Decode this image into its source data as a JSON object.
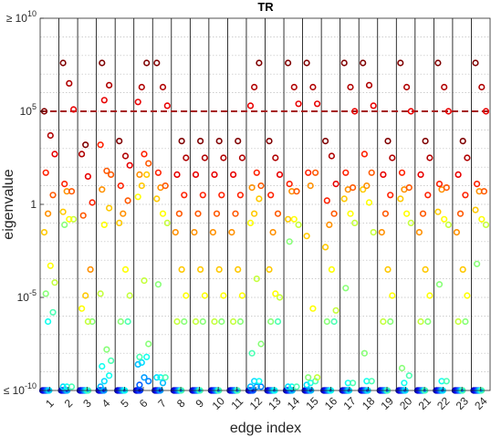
{
  "chart_data": {
    "type": "scatter",
    "title": "TR",
    "xlabel": "edge index",
    "ylabel": "eigenvalue",
    "x_categories": [
      "1",
      "2",
      "3",
      "4",
      "5",
      "6",
      "7",
      "8",
      "9",
      "10",
      "11",
      "12",
      "13",
      "14",
      "15",
      "16",
      "17",
      "18",
      "19",
      "20",
      "21",
      "22",
      "23",
      "24"
    ],
    "y_scale": "log",
    "ylim": [
      1e-10,
      10000000000.0
    ],
    "y_ticks": [
      {
        "exp": -10,
        "prefix": "≤ ",
        "base": "10",
        "sup": "-10"
      },
      {
        "exp": -5,
        "prefix": "",
        "base": "10",
        "sup": "-5"
      },
      {
        "exp": 0,
        "prefix": "",
        "base": "1",
        "sup": ""
      },
      {
        "exp": 5,
        "prefix": "",
        "base": "10",
        "sup": "5"
      },
      {
        "exp": 10,
        "prefix": "≥ ",
        "base": "10",
        "sup": "10"
      }
    ],
    "threshold": {
      "value": 100000,
      "color": "#a51b1b",
      "style": "dashed"
    },
    "grid": "dotted-minor-horizontal",
    "separators": "vertical-lines-between-edges",
    "marker": "open-circle",
    "eigenvalue_colormap": [
      "#00008f",
      "#0000a8",
      "#0000c4",
      "#0000e0",
      "#0000ff",
      "#001cff",
      "#003cff",
      "#005cff",
      "#007cff",
      "#009cff",
      "#00bcff",
      "#00dcff",
      "#10ffef",
      "#4cffb3",
      "#88ff77",
      "#c4ff3b",
      "#ffff00",
      "#ffc800",
      "#ff9000",
      "#ff5800",
      "#ff2000",
      "#e80000",
      "#b00000",
      "#7f0000"
    ],
    "series_log10": [
      [
        -10,
        -10,
        -10,
        -10,
        -10,
        -10,
        -10,
        -10,
        -10,
        -10,
        -10,
        -10,
        -6.3,
        -5.8,
        -4.8,
        -4.2,
        -3.3,
        -1.5,
        -0.5,
        0.5,
        1.7,
        2.7,
        3.7,
        5.0
      ],
      [
        -10,
        -10,
        -10,
        -10,
        -10,
        -10,
        -10,
        -10,
        -10,
        -10,
        -10,
        -9.8,
        -9.8,
        -9.8,
        -1.1,
        -0.8,
        -0.8,
        -0.4,
        0.7,
        0.7,
        1.1,
        5.1,
        6.5,
        7.6
      ],
      [
        -10,
        -10,
        -10,
        -10,
        -10,
        -10,
        -10,
        -10,
        -10,
        -10,
        -10,
        -10,
        -10,
        -10,
        -10,
        -6.3,
        -6.3,
        -5.6,
        -4.9,
        -3.5,
        -0.6,
        0.1,
        1.5,
        2.7,
        3.2
      ],
      [
        -10,
        -10,
        -10,
        -10,
        -10,
        -10,
        -10,
        -10,
        -10,
        -10,
        -10,
        -9.8,
        -9.5,
        -9.2,
        -8.7,
        -8.4,
        -7.8,
        -4.8,
        -1.1,
        -0.2,
        0.8,
        1.6,
        1.8,
        3.2,
        5.6,
        6.4,
        7.6
      ],
      [
        -10,
        -10,
        -10,
        -10,
        -10,
        -10,
        -10,
        -10,
        -10,
        -10,
        -10,
        -10,
        -10,
        -6.3,
        -6.3,
        -4.9,
        -3.5,
        -1.0,
        -0.5,
        0.2,
        1.0,
        2.1,
        2.6,
        3.4
      ],
      [
        -10,
        -10,
        -10,
        -10,
        -10,
        -10,
        -10,
        -10,
        -9.7,
        -9.5,
        -9.3,
        -8.6,
        -8.5,
        -8.2,
        -8.2,
        -7.5,
        -4.1,
        0.4,
        1.0,
        1.6,
        1.6,
        2.2,
        2.7,
        5.5,
        6.3,
        7.6
      ],
      [
        -10,
        -10,
        -10,
        -10,
        -10,
        -10,
        -10,
        -10,
        -10,
        -10,
        -9.6,
        -9.3,
        -9.3,
        -9.3,
        -4.3,
        -1.0,
        -0.5,
        0.3,
        0.9,
        1.0,
        1.7,
        5.3,
        6.3,
        7.6
      ],
      [
        -10,
        -10,
        -10,
        -10,
        -10,
        -10,
        -10,
        -10,
        -10,
        -10,
        -10,
        -10,
        -10,
        -6.3,
        -6.3,
        -4.9,
        -3.5,
        -1.5,
        -0.5,
        0.5,
        1.6,
        2.5,
        3.4
      ],
      [
        -10,
        -10,
        -10,
        -10,
        -10,
        -10,
        -10,
        -10,
        -10,
        -10,
        -10,
        -10,
        -10,
        -6.3,
        -6.3,
        -4.9,
        -3.5,
        -1.5,
        -0.5,
        0.5,
        1.6,
        2.5,
        3.4
      ],
      [
        -10,
        -10,
        -10,
        -10,
        -10,
        -10,
        -10,
        -10,
        -10,
        -10,
        -10,
        -10,
        -10,
        -6.3,
        -6.3,
        -4.9,
        -3.5,
        -1.5,
        -0.5,
        0.5,
        1.6,
        2.5,
        3.4
      ],
      [
        -10,
        -10,
        -10,
        -10,
        -10,
        -10,
        -10,
        -10,
        -10,
        -10,
        -10,
        -10,
        -10,
        -6.3,
        -6.3,
        -4.9,
        -3.5,
        -1.5,
        -0.5,
        0.5,
        1.6,
        2.5,
        3.4
      ],
      [
        -10,
        -10,
        -10,
        -10,
        -10,
        -10,
        -10,
        -10,
        -10,
        -9.8,
        -9.8,
        -9.8,
        -9.5,
        -9.5,
        -8.0,
        -7.5,
        -4.0,
        -1.0,
        -0.5,
        0.3,
        0.9,
        1.0,
        1.7,
        5.3,
        6.3,
        7.6
      ],
      [
        -10,
        -10,
        -10,
        -10,
        -10,
        -10,
        -10,
        -10,
        -10,
        -10,
        -10,
        -10,
        -10,
        -6.3,
        -6.3,
        -5.0,
        -4.8,
        -3.5,
        -1.5,
        -0.5,
        0.5,
        1.6,
        2.5,
        3.4
      ],
      [
        -10,
        -10,
        -10,
        -10,
        -10,
        -10,
        -10,
        -10,
        -10,
        -10,
        -10,
        -9.8,
        -9.8,
        -9.8,
        -2.0,
        -1.1,
        -0.8,
        -0.8,
        0.7,
        0.7,
        1.1,
        5.4,
        6.3,
        7.6
      ],
      [
        -10,
        -10,
        -10,
        -10,
        -10,
        -10,
        -10,
        -10,
        -10,
        -10,
        -10,
        -9.7,
        -9.6,
        -9.5,
        -9.3,
        -9.3,
        -5.6,
        -1.7,
        1.0,
        1.7,
        1.7,
        5.4,
        6.3,
        7.6
      ],
      [
        -10,
        -10,
        -10,
        -10,
        -10,
        -10,
        -10,
        -10,
        -10,
        -10,
        -10,
        -10,
        -10,
        -6.3,
        -6.3,
        -5.7,
        -3.5,
        -2.3,
        -1.1,
        -0.5,
        0.2,
        1.1,
        2.6,
        3.4
      ],
      [
        -10,
        -10,
        -10,
        -10,
        -10,
        -10,
        -10,
        -10,
        -10,
        -10,
        -10,
        -10,
        -9.6,
        -9.6,
        -4.5,
        -1.0,
        -0.5,
        0.3,
        0.8,
        0.9,
        1.7,
        5.0,
        6.3,
        7.6
      ],
      [
        -10,
        -10,
        -10,
        -10,
        -10,
        -10,
        -10,
        -10,
        -10,
        -10,
        -10,
        -10,
        -9.5,
        -9.5,
        -8.0,
        -1.5,
        0.1,
        0.8,
        1.0,
        1.7,
        2.7,
        5.3,
        6.4,
        7.6
      ],
      [
        -10,
        -10,
        -10,
        -10,
        -10,
        -10,
        -10,
        -10,
        -10,
        -10,
        -10,
        -10,
        -10,
        -6.3,
        -6.3,
        -4.9,
        -3.5,
        -1.5,
        -0.5,
        0.5,
        1.6,
        2.5,
        3.4
      ],
      [
        -10,
        -10,
        -10,
        -10,
        -10,
        -10,
        -10,
        -10,
        -10,
        -10,
        -10,
        -10,
        -9.6,
        -9.2,
        -8.8,
        -1.0,
        -0.5,
        0.3,
        0.8,
        0.9,
        1.7,
        5.0,
        6.3,
        7.6
      ],
      [
        -10,
        -10,
        -10,
        -10,
        -10,
        -10,
        -10,
        -10,
        -10,
        -10,
        -10,
        -10,
        -10,
        -6.3,
        -6.3,
        -4.9,
        -3.5,
        -1.5,
        -0.5,
        0.5,
        1.6,
        2.5,
        3.4
      ],
      [
        -10,
        -10,
        -10,
        -10,
        -10,
        -10,
        -10,
        -10,
        -10,
        -10,
        -10,
        -10,
        -9.5,
        -9.5,
        -4.3,
        -1.1,
        -0.8,
        -0.4,
        0.8,
        0.9,
        1.1,
        5.0,
        6.3,
        7.6
      ],
      [
        -10,
        -10,
        -10,
        -10,
        -10,
        -10,
        -10,
        -10,
        -10,
        -10,
        -10,
        -10,
        -10,
        -6.3,
        -6.3,
        -4.9,
        -3.5,
        -1.5,
        -0.5,
        0.5,
        1.6,
        2.5,
        3.4
      ],
      [
        -10,
        -10,
        -10,
        -10,
        -10,
        -10,
        -10,
        -10,
        -10,
        -10,
        -10,
        -10,
        -10,
        -10,
        -3.2,
        -1.1,
        -0.8,
        -0.3,
        0.7,
        0.7,
        1.1,
        5.0,
        6.3,
        7.6
      ]
    ]
  }
}
